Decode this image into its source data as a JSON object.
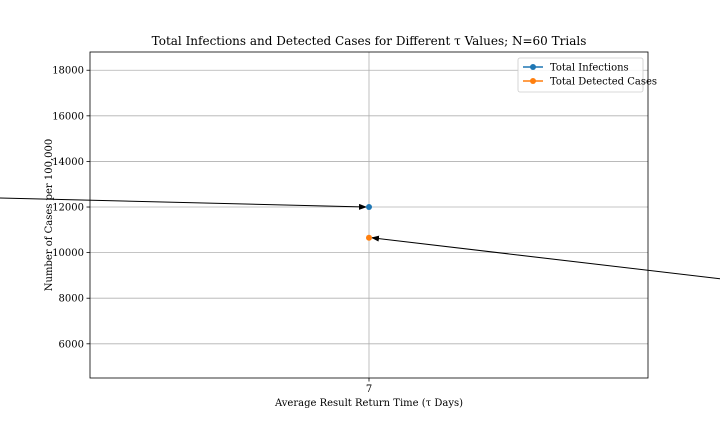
{
  "chart_data": {
    "type": "scatter",
    "title": "Total Infections and Detected Cases for Different τ Values; N=60 Trials",
    "xlabel": "Average Result Return Time (τ Days)",
    "ylabel": "Number of Cases per 100,000",
    "categories": [
      "7"
    ],
    "xlim": [
      6.4,
      7.6
    ],
    "ylim": [
      4500,
      18800
    ],
    "yticks": [
      6000,
      8000,
      10000,
      12000,
      14000,
      16000,
      18000
    ],
    "grid": true,
    "legend_position": "top-right",
    "series": [
      {
        "name": "Total Infections",
        "color": "#1f77b4",
        "x": [
          7
        ],
        "values": [
          12000
        ]
      },
      {
        "name": "Total Detected Cases",
        "color": "#ff7f0e",
        "x": [
          7
        ],
        "values": [
          10650
        ]
      }
    ],
    "annotations": [
      {
        "target_series": "Total Infections",
        "target_x": 7,
        "target_y": 12000,
        "from": "left"
      },
      {
        "target_series": "Total Detected Cases",
        "target_x": 7,
        "target_y": 10650,
        "from": "right"
      }
    ]
  }
}
